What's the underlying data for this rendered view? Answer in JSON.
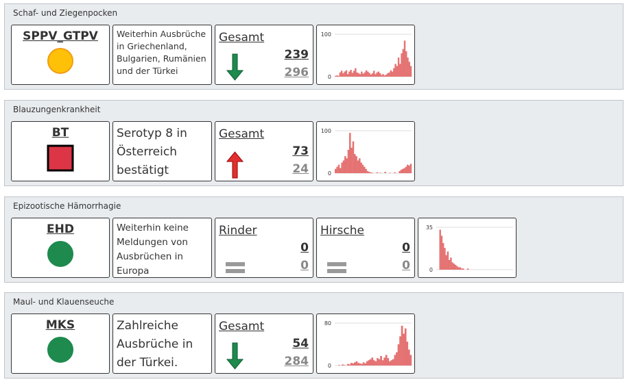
{
  "sections": [
    {
      "title": "Schaf- und Ziegenpocken",
      "code": "SPPV_GTPV",
      "status": {
        "shape": "circle",
        "color": "#ffc107"
      },
      "description": "Weiterhin Ausbrüche in Griechenland, Bulgarien, Rumänien und der Türkei",
      "counters": [
        {
          "label": "Gesamt",
          "current": 239,
          "previous": 296,
          "trend": "down"
        }
      ],
      "sparkline": {
        "ylim": [
          0,
          100
        ],
        "yticks": [
          0,
          100
        ],
        "color": "#e57373",
        "values": [
          2,
          3,
          2,
          10,
          14,
          8,
          12,
          15,
          6,
          12,
          16,
          9,
          14,
          20,
          10,
          8,
          6,
          12,
          7,
          10,
          15,
          12,
          9,
          5,
          8,
          14,
          6,
          10,
          12,
          8,
          4,
          6,
          3,
          5,
          8,
          10,
          15,
          12,
          20,
          30,
          25,
          45,
          30,
          55,
          65,
          85,
          60,
          45,
          35,
          25
        ]
      }
    },
    {
      "title": "Blauzungenkrankheit",
      "code": "BT",
      "status": {
        "shape": "square",
        "color": "#dc3545"
      },
      "description": "Serotyp 8 in Österreich bestätigt",
      "counters": [
        {
          "label": "Gesamt",
          "current": 73,
          "previous": 24,
          "trend": "up"
        }
      ],
      "sparkline": {
        "ylim": [
          0,
          100
        ],
        "yticks": [
          0,
          100
        ],
        "color": "#e57373",
        "values": [
          10,
          15,
          20,
          12,
          25,
          30,
          40,
          35,
          55,
          95,
          60,
          75,
          45,
          40,
          30,
          35,
          25,
          20,
          15,
          10,
          5,
          3,
          2,
          1,
          0,
          0,
          2,
          0,
          1,
          0,
          0,
          3,
          0,
          0,
          1,
          0,
          0,
          2,
          0,
          0,
          5,
          8,
          10,
          12,
          15,
          20,
          18,
          22
        ]
      }
    },
    {
      "title": "Epizootische Hämorrhagie",
      "code": "EHD",
      "status": {
        "shape": "circle",
        "color": "#1e8a4e"
      },
      "description": "Weiterhin keine Meldungen von Ausbrüchen in Europa",
      "counters": [
        {
          "label": "Rinder",
          "current": 0,
          "previous": 0,
          "trend": "equal"
        },
        {
          "label": "Hirsche",
          "current": 0,
          "previous": 0,
          "trend": "equal"
        }
      ],
      "sparkline": {
        "ylim": [
          0,
          35
        ],
        "yticks": [
          0,
          35
        ],
        "color": "#e57373",
        "values": [
          0,
          0,
          33,
          28,
          22,
          18,
          12,
          15,
          8,
          10,
          6,
          5,
          4,
          3,
          2,
          2,
          1,
          1,
          0,
          0,
          1,
          0,
          0,
          0,
          0,
          0,
          0,
          0,
          0,
          0,
          0,
          0,
          0,
          0,
          0,
          0,
          0,
          0,
          0,
          0,
          0,
          0,
          0,
          0,
          0,
          0,
          0,
          0,
          0,
          0
        ]
      }
    },
    {
      "title": "Maul- und Klauenseuche",
      "code": "MKS",
      "status": {
        "shape": "circle",
        "color": "#1e8a4e"
      },
      "description": "Zahlreiche Ausbrüche in der Türkei.",
      "counters": [
        {
          "label": "Gesamt",
          "current": 54,
          "previous": 284,
          "trend": "down"
        }
      ],
      "sparkline": {
        "ylim": [
          0,
          80
        ],
        "yticks": [
          0,
          80
        ],
        "color": "#e57373",
        "values": [
          0,
          0,
          1,
          0,
          2,
          1,
          0,
          3,
          2,
          5,
          4,
          6,
          8,
          5,
          4,
          3,
          6,
          4,
          8,
          10,
          12,
          15,
          10,
          8,
          14,
          12,
          18,
          10,
          15,
          20,
          14,
          8,
          10,
          12,
          20,
          25,
          40,
          55,
          75,
          60,
          70,
          45,
          30,
          20
        ]
      }
    }
  ]
}
